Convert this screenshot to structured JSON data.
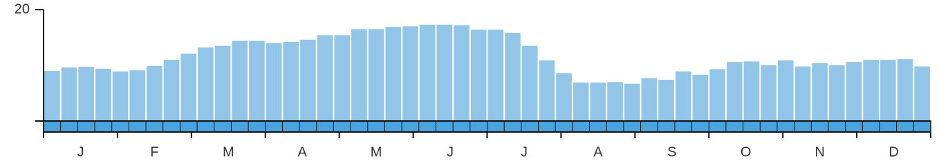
{
  "chart_data": {
    "type": "bar",
    "values": [
      9.0,
      9.6,
      9.75,
      9.4,
      8.9,
      9.1,
      9.9,
      11.0,
      12.1,
      13.2,
      13.5,
      14.4,
      14.4,
      14.0,
      14.2,
      14.6,
      15.4,
      15.4,
      16.5,
      16.5,
      16.9,
      17.0,
      17.3,
      17.3,
      17.2,
      16.4,
      16.4,
      15.8,
      13.5,
      10.9,
      8.6,
      6.9,
      6.9,
      7.0,
      6.7,
      7.7,
      7.4,
      8.9,
      8.3,
      9.3,
      10.6,
      10.7,
      10.0,
      10.9,
      9.8,
      10.4,
      10.0,
      10.6,
      11.0,
      11.0,
      11.1,
      9.8
    ],
    "color": "#93c5e8",
    "months": [
      "J",
      "F",
      "M",
      "A",
      "M",
      "J",
      "J",
      "A",
      "S",
      "O",
      "N",
      "D"
    ],
    "ylim": [
      0,
      20
    ],
    "yticks": [
      20
    ]
  }
}
